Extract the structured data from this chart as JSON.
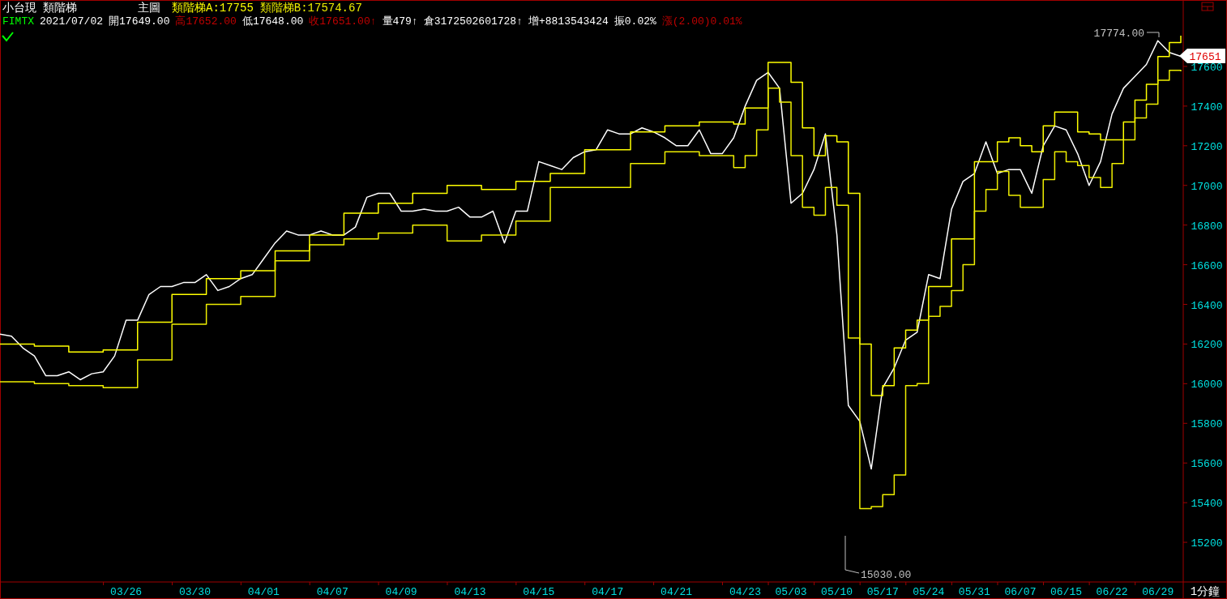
{
  "chart_data": {
    "type": "line",
    "title": "小台現  類階梯",
    "subtitle": "主圖",
    "categories": [
      null,
      null,
      null,
      null,
      null,
      null,
      null,
      null,
      null,
      null,
      null,
      "03/26",
      null,
      null,
      null,
      null,
      null,
      "03/30",
      null,
      null,
      null,
      null,
      null,
      "04/01",
      null,
      null,
      null,
      null,
      null,
      "04/07",
      null,
      null,
      null,
      null,
      null,
      "04/09",
      null,
      null,
      null,
      null,
      null,
      "04/13",
      null,
      null,
      null,
      null,
      null,
      "04/15",
      null,
      null,
      null,
      null,
      null,
      "04/17",
      null,
      null,
      null,
      null,
      null,
      "04/21",
      null,
      null,
      null,
      null,
      null,
      "04/23",
      null,
      null,
      null,
      "05/03",
      null,
      null,
      null,
      "05/10",
      null,
      null,
      null,
      "05/17",
      null,
      null,
      null,
      "05/24",
      null,
      null,
      null,
      "05/31",
      null,
      null,
      null,
      "06/07",
      null,
      null,
      null,
      "06/15",
      null,
      null,
      null,
      "06/22",
      null,
      null,
      null,
      "06/29",
      null,
      null
    ],
    "series": [
      {
        "color": "#ffffff",
        "values": [
          16250,
          16240,
          16180,
          16140,
          16040,
          16040,
          16060,
          16020,
          16050,
          16060,
          16140,
          16320,
          16320,
          16450,
          16490,
          16490,
          16510,
          16510,
          16550,
          16470,
          16490,
          16530,
          16550,
          16630,
          16710,
          16770,
          16750,
          16750,
          16770,
          16750,
          16750,
          16790,
          16940,
          16960,
          16960,
          16870,
          16870,
          16880,
          16870,
          16870,
          16890,
          16840,
          16840,
          16870,
          16710,
          16870,
          16870,
          17120,
          17100,
          17080,
          17140,
          17170,
          17180,
          17280,
          17260,
          17260,
          17290,
          17270,
          17240,
          17200,
          17200,
          17280,
          17160,
          17160,
          17240,
          17400,
          17530,
          17570,
          17490,
          16910,
          16960,
          17080,
          17260,
          16750,
          15890,
          15810,
          15570,
          15980,
          16080,
          16220,
          16260,
          16550,
          16530,
          16880,
          17020,
          17060,
          17220,
          17060,
          17080,
          17080,
          16960,
          17200,
          17300,
          17280,
          17160,
          17000,
          17120,
          17360,
          17490,
          17550,
          17610,
          17730,
          17670,
          17651
        ]
      },
      {
        "type": "step",
        "name": "類階梯A:17755",
        "color": "#ffff00",
        "values": [
          16200,
          16200,
          16200,
          16190,
          16190,
          16190,
          16160,
          16160,
          16160,
          16170,
          16170,
          16170,
          16310,
          16310,
          16310,
          16450,
          16450,
          16450,
          16530,
          16530,
          16530,
          16570,
          16570,
          16570,
          16670,
          16670,
          16670,
          16750,
          16750,
          16750,
          16860,
          16860,
          16860,
          16910,
          16910,
          16910,
          16960,
          16960,
          16960,
          17000,
          17000,
          17000,
          16980,
          16980,
          16980,
          17020,
          17020,
          17020,
          17060,
          17060,
          17060,
          17180,
          17180,
          17180,
          17180,
          17270,
          17270,
          17270,
          17300,
          17300,
          17300,
          17320,
          17320,
          17320,
          17310,
          17390,
          17390,
          17620,
          17620,
          17520,
          17290,
          17150,
          17250,
          17220,
          16960,
          16200,
          15940,
          15990,
          16180,
          16270,
          16320,
          16490,
          16490,
          16730,
          16730,
          17120,
          17120,
          17220,
          17240,
          17200,
          17170,
          17300,
          17370,
          17370,
          17270,
          17260,
          17230,
          17230,
          17320,
          17430,
          17510,
          17650,
          17720,
          17755
        ]
      },
      {
        "type": "step",
        "name": "類階梯B:17574.67",
        "color": "#eeee00",
        "values": [
          16010,
          16010,
          16010,
          16000,
          16000,
          16000,
          15990,
          15990,
          15990,
          15980,
          15980,
          15980,
          16120,
          16120,
          16120,
          16300,
          16300,
          16300,
          16400,
          16400,
          16400,
          16440,
          16440,
          16440,
          16620,
          16620,
          16620,
          16700,
          16700,
          16700,
          16730,
          16730,
          16730,
          16760,
          16760,
          16760,
          16800,
          16800,
          16800,
          16720,
          16720,
          16720,
          16750,
          16750,
          16750,
          16820,
          16820,
          16820,
          16990,
          16990,
          16990,
          16990,
          16990,
          16990,
          16990,
          17110,
          17110,
          17110,
          17170,
          17170,
          17170,
          17150,
          17150,
          17150,
          17090,
          17150,
          17280,
          17490,
          17420,
          17150,
          16890,
          16850,
          16990,
          16900,
          16230,
          15370,
          15380,
          15440,
          15540,
          15990,
          16000,
          16340,
          16390,
          16470,
          16600,
          16870,
          16980,
          17070,
          16950,
          16890,
          16890,
          17030,
          17170,
          17120,
          17100,
          17040,
          16990,
          17110,
          17230,
          17340,
          17410,
          17530,
          17580,
          17575
        ]
      }
    ],
    "ylim": [
      15000,
      17935
    ],
    "yticks": [
      15200,
      15400,
      15600,
      15800,
      16000,
      16200,
      16400,
      16600,
      16800,
      17000,
      17200,
      17400,
      17600
    ],
    "legend": "top left",
    "annotations": [
      "FIMTX",
      "2021/07/02",
      "開17649.00",
      "高17652.00",
      "低17648.00",
      "收17651.00↑",
      "量479↑",
      "倉3172502601728↑",
      "增+8813543424",
      "振0.02%",
      "漲(2.00)0.01%",
      "1分鐘",
      "17774.00",
      "15030.00",
      "17651"
    ]
  }
}
